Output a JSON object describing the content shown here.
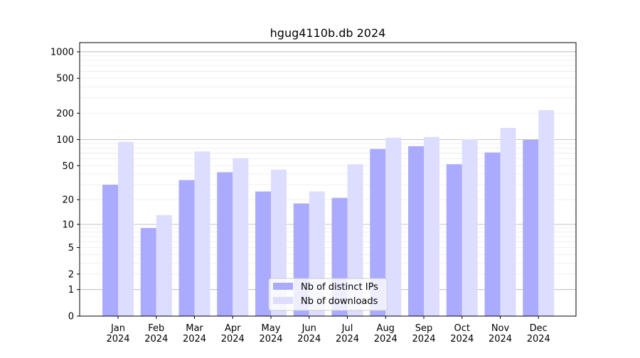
{
  "chart_data": {
    "type": "bar",
    "title": "hgug4110b.db 2024",
    "xlabel": "",
    "ylabel": "",
    "yscale": "log (value + 1)",
    "ylim": [
      0,
      1200
    ],
    "yticks": [
      0,
      1,
      2,
      5,
      10,
      20,
      50,
      100,
      200,
      500,
      1000
    ],
    "grid": true,
    "legend_position": "bottom-center",
    "categories": [
      "Jan\n2024",
      "Feb\n2024",
      "Mar\n2024",
      "Apr\n2024",
      "May\n2024",
      "Jun\n2024",
      "Jul\n2024",
      "Aug\n2024",
      "Sep\n2024",
      "Oct\n2024",
      "Nov\n2024",
      "Dec\n2024"
    ],
    "series": [
      {
        "name": "Nb of distinct IPs",
        "color": "#aaaaff",
        "values": [
          30,
          9,
          34,
          42,
          25,
          18,
          21,
          78,
          84,
          52,
          71,
          99
        ]
      },
      {
        "name": "Nb of downloads",
        "color": "#ddddff",
        "values": [
          94,
          13,
          73,
          61,
          45,
          25,
          52,
          105,
          107,
          101,
          136,
          217
        ]
      }
    ]
  }
}
